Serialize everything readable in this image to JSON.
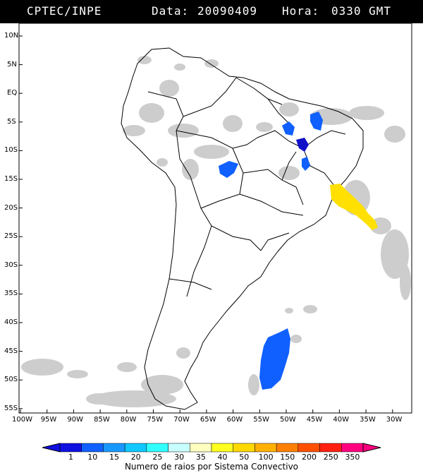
{
  "header": {
    "source": "CPTEC/INPE",
    "data_label": "Data:",
    "date": "20090409",
    "hora_label": "Hora:",
    "time": "0330 GMT"
  },
  "map": {
    "lat_labels": [
      "10N",
      "5N",
      "EQ",
      "5S",
      "10S",
      "15S",
      "20S",
      "25S",
      "30S",
      "35S",
      "40S",
      "45S",
      "50S",
      "55S"
    ],
    "lon_labels": [
      "100W",
      "95W",
      "90W",
      "85W",
      "80W",
      "75W",
      "70W",
      "65W",
      "60W",
      "55W",
      "50W",
      "45W",
      "40W",
      "35W",
      "30W"
    ],
    "cloud_color": "#c8c8c8",
    "border_color": "#000000"
  },
  "legend": {
    "caption": "Numero de raios por Sistema Convectivo",
    "values": [
      "1",
      "10",
      "15",
      "20",
      "25",
      "30",
      "35",
      "40",
      "50",
      "100",
      "150",
      "200",
      "250",
      "350"
    ],
    "colors": [
      "#1010e0",
      "#1060ff",
      "#1898ff",
      "#10c8ff",
      "#30ffff",
      "#c8ffff",
      "#ffffc0",
      "#ffff20",
      "#ffd800",
      "#ffb000",
      "#ff8000",
      "#ff5000",
      "#ff2010",
      "#ff0080"
    ]
  },
  "systems": [
    {
      "name": "lightning-cluster-para",
      "colour": "#1060ff"
    },
    {
      "name": "lightning-cluster-maranhao",
      "colour": "#1060ff"
    },
    {
      "name": "lightning-cluster-piaui",
      "colour": "#1010c8"
    },
    {
      "name": "lightning-cluster-bahia-west",
      "colour": "#1060ff"
    },
    {
      "name": "lightning-cluster-goias",
      "colour": "#1060ff"
    },
    {
      "name": "lightning-cluster-bahia-coast",
      "colour": "#ffe000"
    },
    {
      "name": "lightning-cluster-south-atlantic",
      "colour": "#1060ff"
    }
  ]
}
